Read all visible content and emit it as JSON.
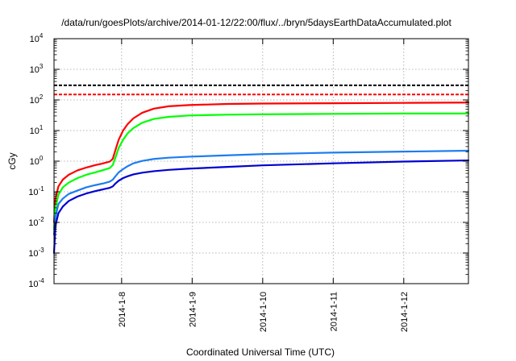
{
  "chart_data": {
    "type": "line",
    "title": "/data/run/goesPlots/archive/2014-01-12/22:00/flux/../bryn/5daysEarthDataAccumulated.plot",
    "xlabel": "Coordinated Universal Time (UTC)",
    "ylabel": "cGy",
    "x_scale": "time",
    "y_scale": "log",
    "xlim": [
      "2014-01-07T01:00",
      "2014-01-12T22:00"
    ],
    "ylim": [
      0.0001,
      10000
    ],
    "x_ticks": [
      "2014-1-8",
      "2014-1-9",
      "2014-1-10",
      "2014-1-11",
      "2014-1-12"
    ],
    "x_tick_values": [
      "2014-01-08T00:00",
      "2014-01-09T00:00",
      "2014-01-10T00:00",
      "2014-01-11T00:00",
      "2014-01-12T00:00"
    ],
    "y_ticks": [
      {
        "base": "10",
        "exp": "-4",
        "value": 0.0001
      },
      {
        "base": "10",
        "exp": "-3",
        "value": 0.001
      },
      {
        "base": "10",
        "exp": "-2",
        "value": 0.01
      },
      {
        "base": "10",
        "exp": "-1",
        "value": 0.1
      },
      {
        "base": "10",
        "exp": "0",
        "value": 1
      },
      {
        "base": "10",
        "exp": "1",
        "value": 10
      },
      {
        "base": "10",
        "exp": "2",
        "value": 100
      },
      {
        "base": "10",
        "exp": "3",
        "value": 1000
      },
      {
        "base": "10",
        "exp": "4",
        "value": 10000
      }
    ],
    "grid": true,
    "reference_lines": [
      {
        "value": 300,
        "color": "#000000",
        "style": "dashed"
      },
      {
        "value": 150,
        "color": "#ff0000",
        "style": "dashed"
      }
    ],
    "series": [
      {
        "color": "#ff0000",
        "points": [
          [
            "2014-01-07T01:00",
            0.01
          ],
          [
            "2014-01-07T01:30",
            0.06
          ],
          [
            "2014-01-07T02:30",
            0.15
          ],
          [
            "2014-01-07T04:00",
            0.25
          ],
          [
            "2014-01-07T06:00",
            0.36
          ],
          [
            "2014-01-07T09:00",
            0.5
          ],
          [
            "2014-01-07T12:00",
            0.62
          ],
          [
            "2014-01-07T15:00",
            0.74
          ],
          [
            "2014-01-07T18:00",
            0.86
          ],
          [
            "2014-01-07T20:00",
            0.97
          ],
          [
            "2014-01-07T21:00",
            1.2
          ],
          [
            "2014-01-07T22:00",
            2.5
          ],
          [
            "2014-01-07T23:00",
            5
          ],
          [
            "2014-01-08T00:30",
            10
          ],
          [
            "2014-01-08T02:00",
            16
          ],
          [
            "2014-01-08T04:00",
            25
          ],
          [
            "2014-01-08T07:00",
            38
          ],
          [
            "2014-01-08T11:00",
            52
          ],
          [
            "2014-01-08T16:00",
            62
          ],
          [
            "2014-01-08T23:00",
            68
          ],
          [
            "2014-01-09T12:00",
            74
          ],
          [
            "2014-01-10T00:00",
            76
          ],
          [
            "2014-01-11T00:00",
            78
          ],
          [
            "2014-01-12T00:00",
            80
          ],
          [
            "2014-01-12T22:00",
            82
          ]
        ]
      },
      {
        "color": "#00ff00",
        "points": [
          [
            "2014-01-07T01:00",
            0.006
          ],
          [
            "2014-01-07T01:30",
            0.03
          ],
          [
            "2014-01-07T02:30",
            0.08
          ],
          [
            "2014-01-07T04:00",
            0.14
          ],
          [
            "2014-01-07T06:00",
            0.2
          ],
          [
            "2014-01-07T09:00",
            0.28
          ],
          [
            "2014-01-07T12:00",
            0.36
          ],
          [
            "2014-01-07T15:00",
            0.43
          ],
          [
            "2014-01-07T18:00",
            0.52
          ],
          [
            "2014-01-07T20:00",
            0.6
          ],
          [
            "2014-01-07T21:00",
            0.75
          ],
          [
            "2014-01-07T22:00",
            1.4
          ],
          [
            "2014-01-07T23:00",
            2.7
          ],
          [
            "2014-01-08T00:30",
            5
          ],
          [
            "2014-01-08T02:00",
            8
          ],
          [
            "2014-01-08T04:00",
            12
          ],
          [
            "2014-01-08T07:00",
            18
          ],
          [
            "2014-01-08T11:00",
            24
          ],
          [
            "2014-01-08T16:00",
            28
          ],
          [
            "2014-01-08T23:00",
            31
          ],
          [
            "2014-01-09T12:00",
            33
          ],
          [
            "2014-01-10T00:00",
            34
          ],
          [
            "2014-01-11T00:00",
            35
          ],
          [
            "2014-01-12T00:00",
            36
          ],
          [
            "2014-01-12T22:00",
            36
          ]
        ]
      },
      {
        "color": "#1e7cf0",
        "points": [
          [
            "2014-01-07T01:00",
            0.004
          ],
          [
            "2014-01-07T01:30",
            0.015
          ],
          [
            "2014-01-07T02:30",
            0.04
          ],
          [
            "2014-01-07T04:00",
            0.06
          ],
          [
            "2014-01-07T06:00",
            0.085
          ],
          [
            "2014-01-07T09:00",
            0.11
          ],
          [
            "2014-01-07T12:00",
            0.14
          ],
          [
            "2014-01-07T15:00",
            0.165
          ],
          [
            "2014-01-07T18:00",
            0.19
          ],
          [
            "2014-01-07T20:00",
            0.215
          ],
          [
            "2014-01-07T21:00",
            0.25
          ],
          [
            "2014-01-07T22:00",
            0.33
          ],
          [
            "2014-01-07T23:00",
            0.43
          ],
          [
            "2014-01-08T00:30",
            0.55
          ],
          [
            "2014-01-08T02:00",
            0.68
          ],
          [
            "2014-01-08T04:00",
            0.85
          ],
          [
            "2014-01-08T07:00",
            1.02
          ],
          [
            "2014-01-08T11:00",
            1.18
          ],
          [
            "2014-01-08T16:00",
            1.3
          ],
          [
            "2014-01-08T23:00",
            1.4
          ],
          [
            "2014-01-09T12:00",
            1.55
          ],
          [
            "2014-01-10T00:00",
            1.7
          ],
          [
            "2014-01-11T00:00",
            1.9
          ],
          [
            "2014-01-12T00:00",
            2.05
          ],
          [
            "2014-01-12T22:00",
            2.2
          ]
        ]
      },
      {
        "color": "#0000d0",
        "points": [
          [
            "2014-01-07T01:00",
            0.001
          ],
          [
            "2014-01-07T01:30",
            0.008
          ],
          [
            "2014-01-07T02:30",
            0.02
          ],
          [
            "2014-01-07T04:00",
            0.033
          ],
          [
            "2014-01-07T06:00",
            0.05
          ],
          [
            "2014-01-07T09:00",
            0.07
          ],
          [
            "2014-01-07T12:00",
            0.088
          ],
          [
            "2014-01-07T15:00",
            0.105
          ],
          [
            "2014-01-07T18:00",
            0.122
          ],
          [
            "2014-01-07T20:00",
            0.135
          ],
          [
            "2014-01-07T21:00",
            0.15
          ],
          [
            "2014-01-07T22:00",
            0.19
          ],
          [
            "2014-01-07T23:00",
            0.23
          ],
          [
            "2014-01-08T00:30",
            0.28
          ],
          [
            "2014-01-08T02:00",
            0.32
          ],
          [
            "2014-01-08T04:00",
            0.37
          ],
          [
            "2014-01-08T07:00",
            0.42
          ],
          [
            "2014-01-08T11:00",
            0.47
          ],
          [
            "2014-01-08T16:00",
            0.52
          ],
          [
            "2014-01-08T23:00",
            0.57
          ],
          [
            "2014-01-09T12:00",
            0.65
          ],
          [
            "2014-01-10T00:00",
            0.73
          ],
          [
            "2014-01-11T00:00",
            0.85
          ],
          [
            "2014-01-12T00:00",
            0.97
          ],
          [
            "2014-01-12T22:00",
            1.06
          ]
        ]
      }
    ]
  }
}
